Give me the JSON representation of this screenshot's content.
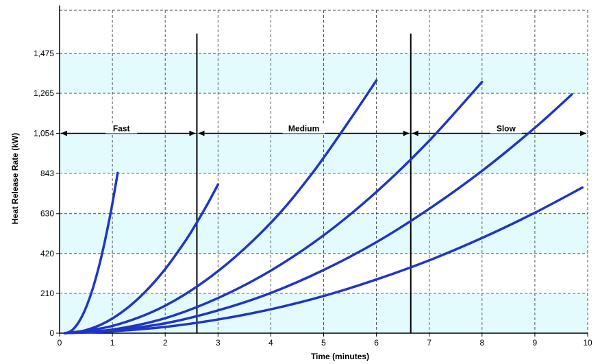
{
  "chart_data": {
    "type": "line",
    "title": "",
    "xlabel": "Time (minutes)",
    "ylabel": "Heat Release Rate (kW)",
    "xlim": [
      0,
      10
    ],
    "ylim": [
      0,
      1470
    ],
    "x_ticks": [
      "0",
      "1",
      "2",
      "3",
      "4",
      "5",
      "6",
      "7",
      "8",
      "9",
      "10"
    ],
    "y_ticks": [
      "0",
      "210",
      "420",
      "630",
      "843",
      "1,054",
      "1,265",
      "1,475"
    ],
    "y_tick_values": [
      0,
      210,
      420,
      630,
      843,
      1054,
      1265,
      1475
    ],
    "grid": true,
    "band_color": "#e3fbfd",
    "curve_color": "#1f35c8",
    "series": [
      {
        "x": [
          0.1,
          0.2,
          0.3,
          0.4,
          0.5,
          0.6,
          0.7,
          0.8,
          0.9,
          1.0,
          1.1
        ],
        "y": [
          0,
          8,
          34,
          76,
          135,
          211,
          304,
          414,
          541,
          684,
          845
        ]
      },
      {
        "x": [
          0.1,
          0.4,
          0.8,
          1.2,
          1.6,
          2.0,
          2.4,
          2.6,
          2.8,
          3.0
        ],
        "y": [
          0,
          9,
          47,
          115,
          212,
          338,
          494,
          584,
          680,
          784
        ]
      },
      {
        "x": [
          0.1,
          1.0,
          2.0,
          3.0,
          4.0,
          4.8,
          5.5,
          6.0
        ],
        "y": [
          0,
          38,
          145,
          327,
          582,
          849,
          1126,
          1333
        ]
      },
      {
        "x": [
          0.1,
          1.0,
          2.0,
          3.0,
          4.0,
          5.0,
          6.0,
          7.0,
          8.0
        ],
        "y": [
          0,
          19,
          79,
          185,
          330,
          516,
          745,
          1015,
          1325
        ]
      },
      {
        "x": [
          0.1,
          1.0,
          2.0,
          3.0,
          4.0,
          5.0,
          6.0,
          7.0,
          8.0,
          9.0,
          9.7
        ],
        "y": [
          0,
          15,
          52,
          120,
          212,
          333,
          480,
          656,
          856,
          1083,
          1259
        ]
      },
      {
        "x": [
          0.1,
          1.0,
          2.0,
          3.0,
          4.0,
          5.0,
          6.0,
          7.0,
          8.0,
          9.0,
          9.9
        ],
        "y": [
          0,
          10,
          33,
          72,
          126,
          196,
          283,
          384,
          502,
          635,
          768
        ]
      }
    ],
    "dividers": [
      {
        "x": 2.6,
        "y_top": 1280
      },
      {
        "x": 6.65,
        "y_top": 1280
      }
    ],
    "arrow_y": 1054,
    "regions": [
      {
        "label": "Fast",
        "x_start": 0,
        "x_end": 2.6
      },
      {
        "label": "Medium",
        "x_start": 2.6,
        "x_end": 6.65
      },
      {
        "label": "Slow",
        "x_start": 6.65,
        "x_end": 10
      }
    ]
  }
}
